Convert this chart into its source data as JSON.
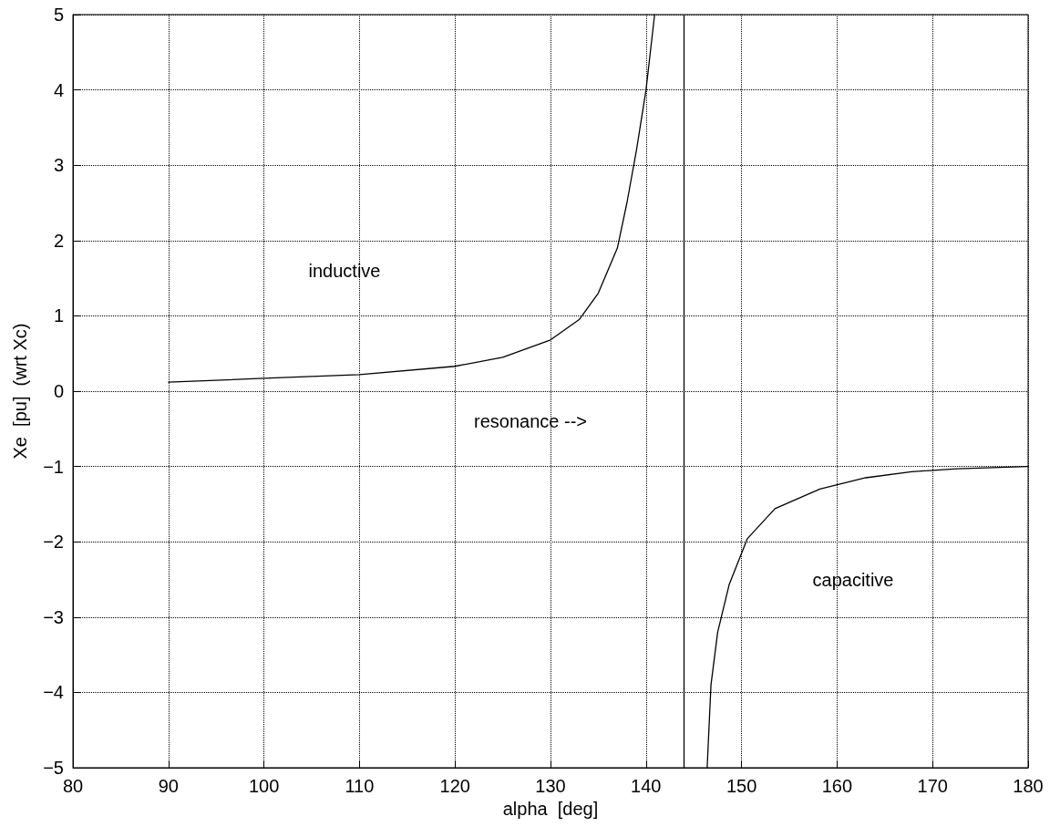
{
  "chart_data": {
    "type": "line",
    "xlabel": "alpha  [deg]",
    "ylabel": "Xe  [pu]  (wrt Xc)",
    "xlim": [
      80,
      180
    ],
    "xticks": [
      80,
      90,
      100,
      110,
      120,
      130,
      140,
      150,
      160,
      170,
      180
    ],
    "ylim": [
      -5,
      5
    ],
    "yticks": [
      -5,
      -4,
      -3,
      -2,
      -1,
      0,
      1,
      2,
      3,
      4,
      5
    ],
    "grid": true,
    "marker": "none",
    "line_style": "solid",
    "series": [
      {
        "color": "#000000",
        "x": [
          90,
          100,
          110,
          120,
          125,
          130,
          133,
          135,
          137,
          138,
          139,
          140,
          140.9
        ],
        "values": [
          0.12,
          0.17,
          0.22,
          0.33,
          0.45,
          0.68,
          0.95,
          1.3,
          1.9,
          2.5,
          3.2,
          4.0,
          5.0
        ]
      },
      {
        "color": "#000000",
        "x": [
          146.4,
          146.8,
          147.5,
          148.7,
          150.6,
          153.5,
          158.2,
          163,
          167.8,
          172.6,
          180
        ],
        "values": [
          -5.0,
          -3.9,
          -3.2,
          -2.57,
          -1.96,
          -1.56,
          -1.3,
          -1.15,
          -1.07,
          -1.03,
          -1.0
        ]
      }
    ],
    "ref_lines": [
      {
        "axis": "x",
        "value": 144,
        "label": null,
        "color": "#000000",
        "line_style": "solid"
      }
    ],
    "annotations": [
      "inductive",
      "resonance -->",
      "capacitive"
    ]
  }
}
